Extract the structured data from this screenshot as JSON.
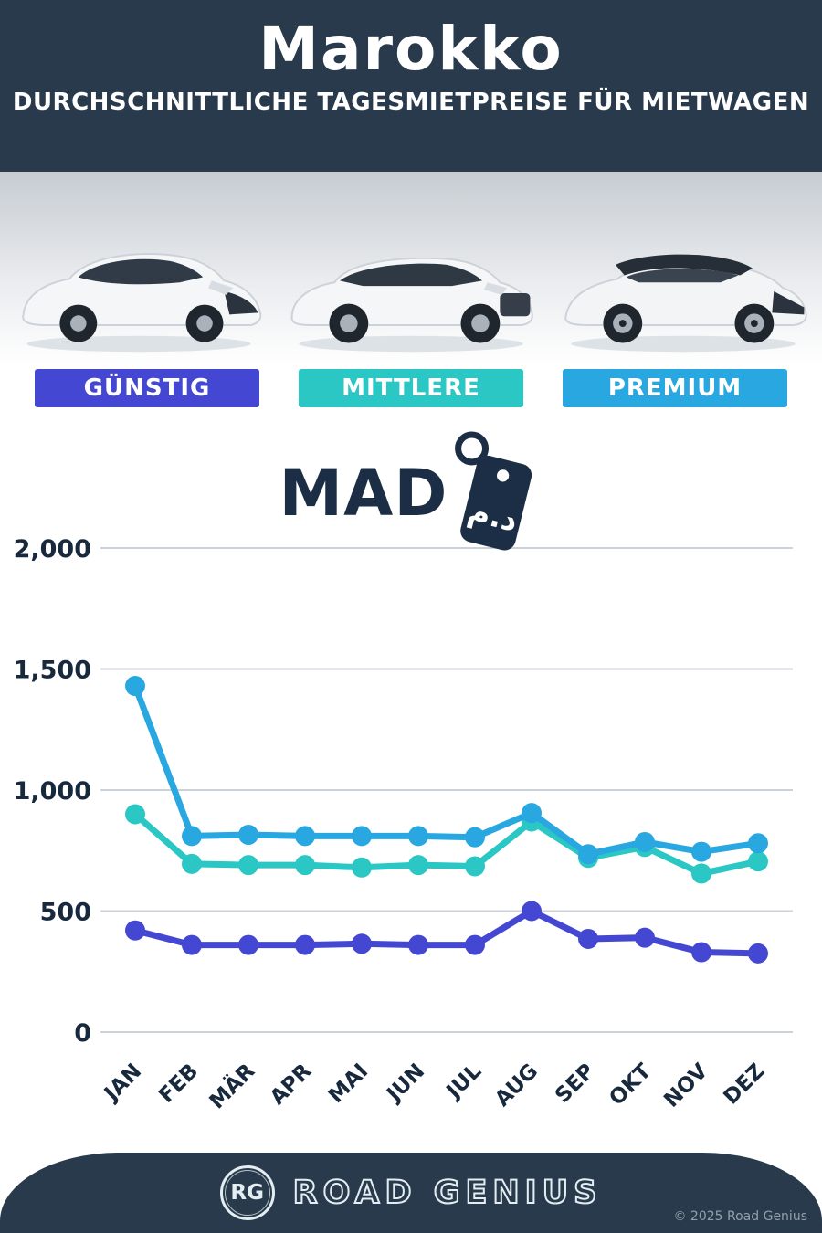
{
  "header": {
    "title": "Marokko",
    "subtitle": "DURCHSCHNITTLICHE TAGESMIETPREISE FÜR MIETWAGEN",
    "background": "#283a4b"
  },
  "categories": [
    {
      "name": "guenstig",
      "label": "GÜNSTIG",
      "color": "#4447d2"
    },
    {
      "name": "mittlere",
      "label": "MITTLERE",
      "color": "#2bc7c4"
    },
    {
      "name": "premium",
      "label": "PREMIUM",
      "color": "#29a7e0"
    }
  ],
  "images": [
    {
      "name": "economy-car-image",
      "category": "GÜNSTIG"
    },
    {
      "name": "midsize-suv-image",
      "category": "MITTLERE"
    },
    {
      "name": "premium-suv-image",
      "category": "PREMIUM"
    }
  ],
  "currency": {
    "code": "MAD",
    "symbol": "د.م",
    "icon": "price-tag-icon"
  },
  "chart_data": {
    "type": "line",
    "title": "Marokko – Durchschnittliche Tagesmietpreise für Mietwagen (MAD)",
    "categories": [
      "JAN",
      "FEB",
      "MÄR",
      "APR",
      "MAI",
      "JUN",
      "JUL",
      "AUG",
      "SEP",
      "OKT",
      "NOV",
      "DEZ"
    ],
    "series": [
      {
        "name": "GÜNSTIG",
        "color": "#4447d2",
        "values": [
          420,
          360,
          360,
          360,
          365,
          360,
          360,
          500,
          385,
          390,
          330,
          325
        ]
      },
      {
        "name": "MITTLERE",
        "color": "#2bc7c4",
        "values": [
          900,
          695,
          690,
          690,
          680,
          690,
          685,
          870,
          720,
          765,
          655,
          705
        ]
      },
      {
        "name": "PREMIUM",
        "color": "#29a7e0",
        "values": [
          1430,
          810,
          815,
          810,
          810,
          810,
          805,
          905,
          735,
          785,
          745,
          780
        ]
      }
    ],
    "xlabel": "",
    "ylabel": "",
    "ylim": [
      0,
      2000
    ],
    "yticks": [
      0,
      500,
      1000,
      1500,
      2000
    ],
    "ytick_labels": [
      "0",
      "500",
      "1,000",
      "1,500",
      "2,000"
    ],
    "grid": true,
    "legend": "color badges above chart"
  },
  "footer": {
    "logo": "RG",
    "brand": "ROAD GENIUS",
    "copyright": "© 2025 Road Genius"
  }
}
